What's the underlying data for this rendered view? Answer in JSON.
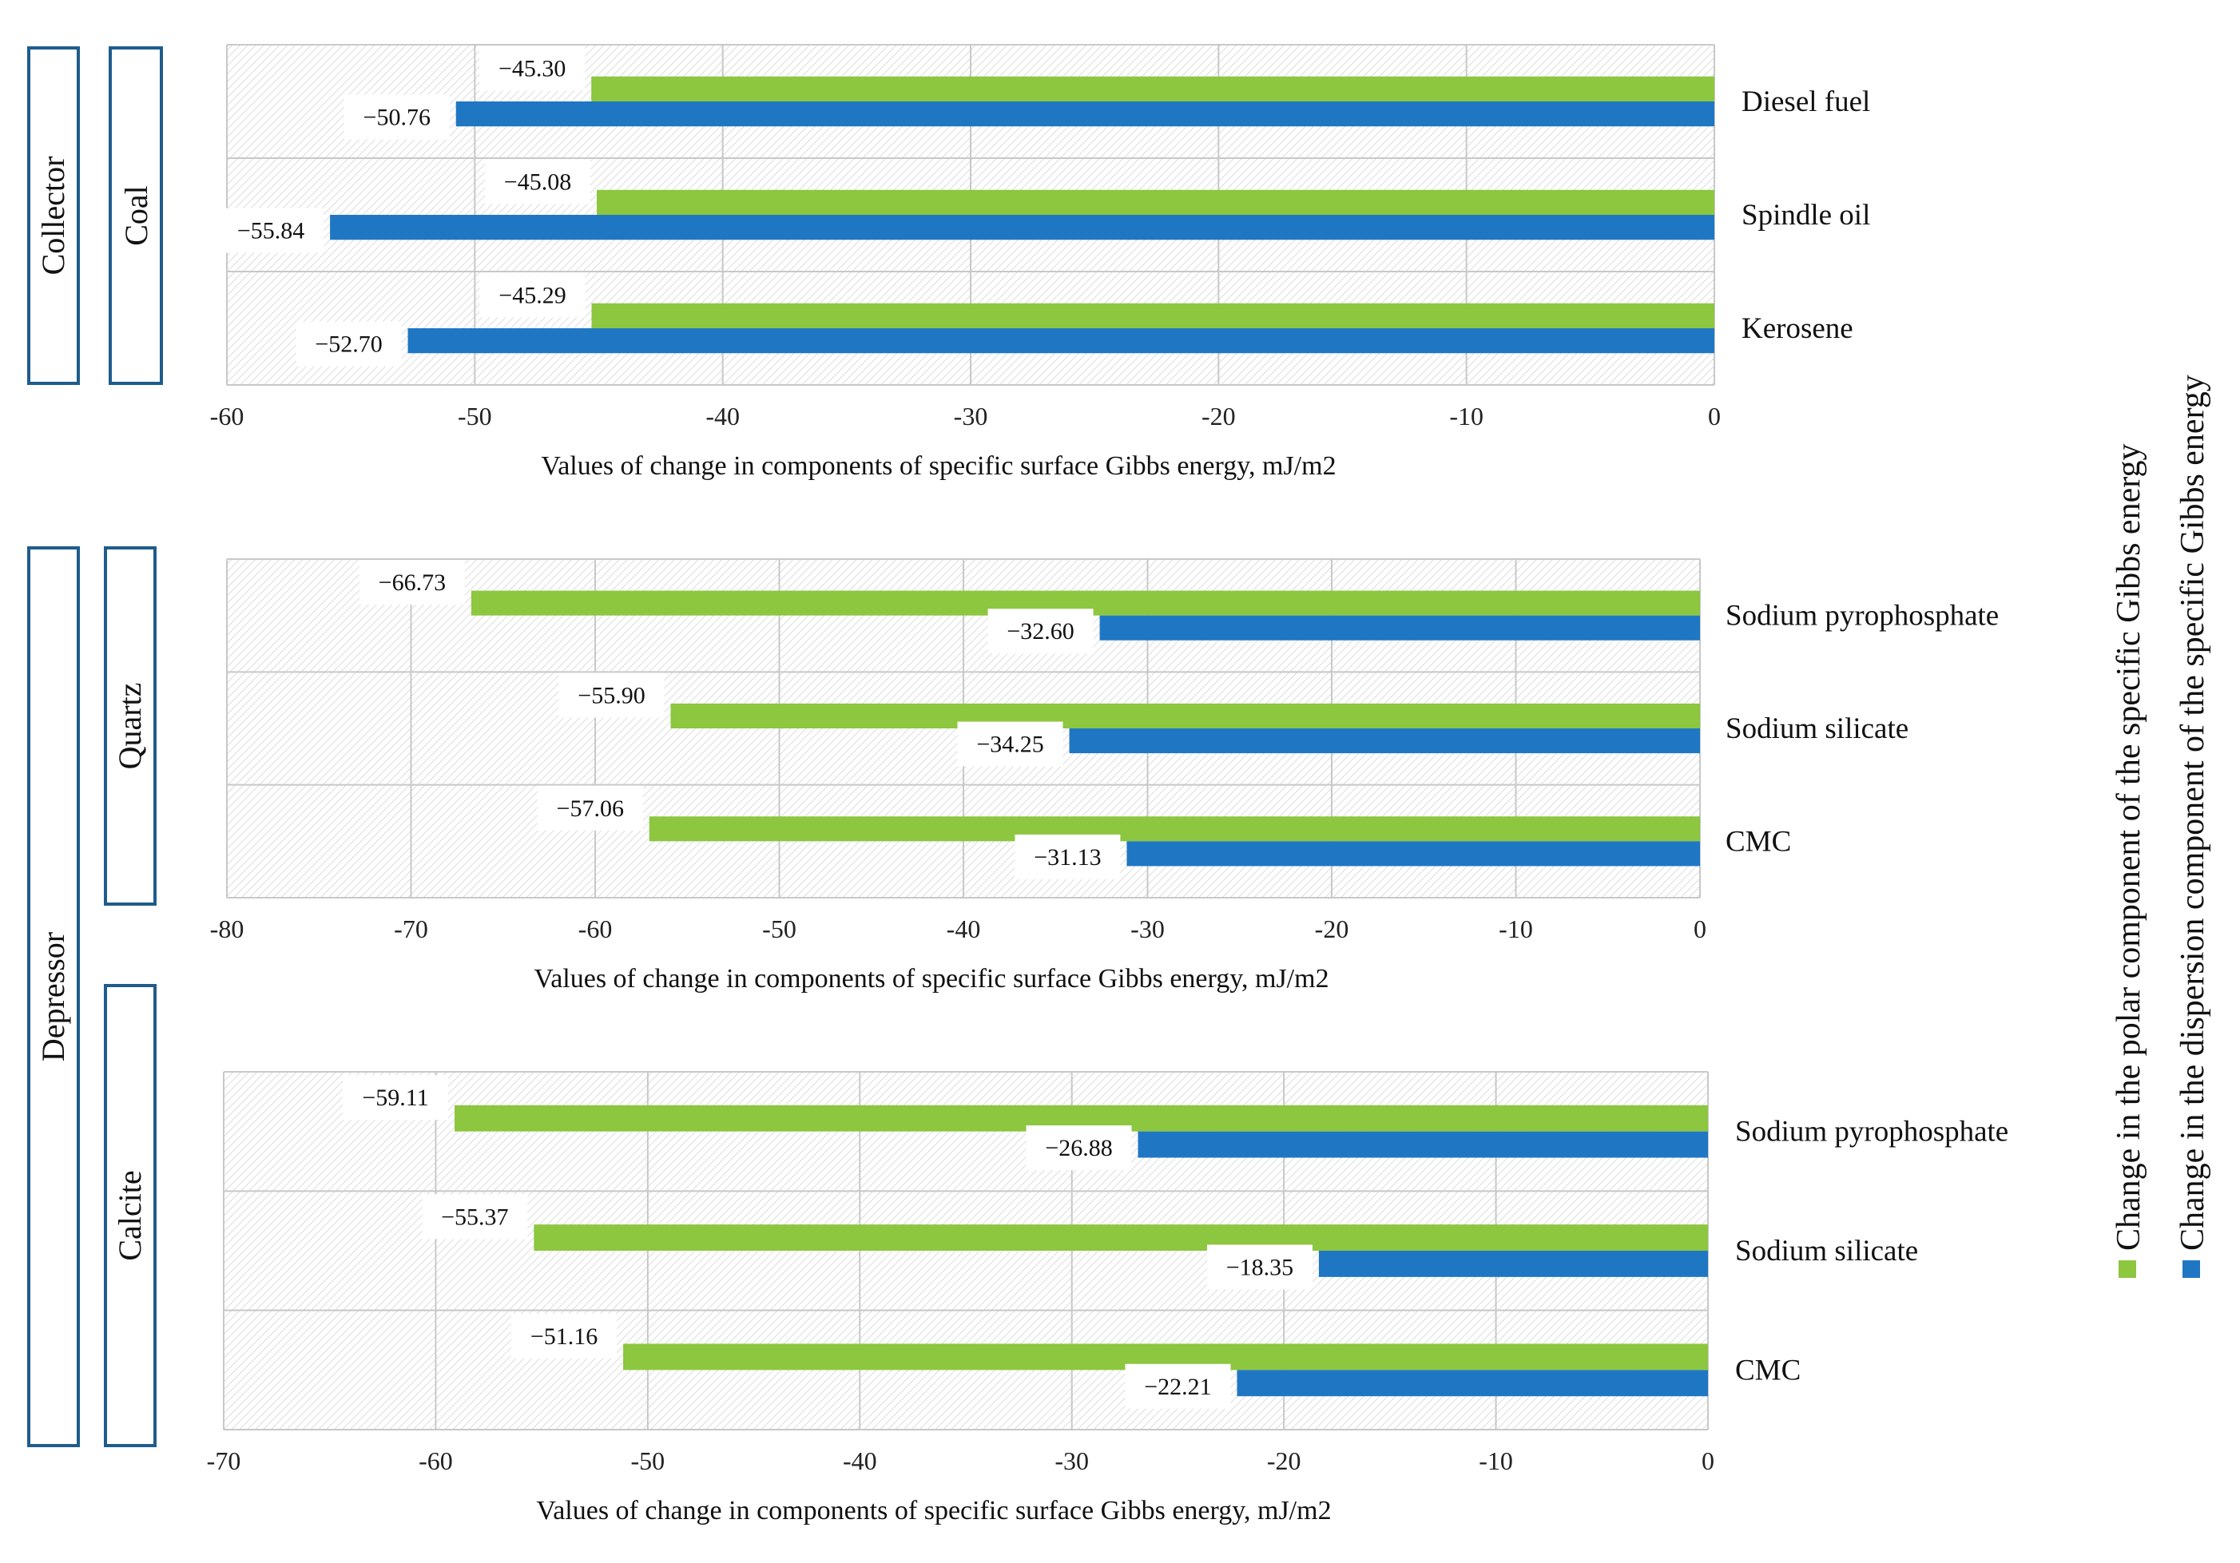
{
  "colors": {
    "polar": "#8DC63F",
    "dispersion": "#1F77C4",
    "frame": "#1F5C8C",
    "grid": "#c8c8c8"
  },
  "groups": [
    {
      "name": "group-collector",
      "label": "Collector"
    },
    {
      "name": "group-depressor",
      "label": "Depressor"
    }
  ],
  "subgroups": [
    {
      "name": "subgroup-coal",
      "label": "Coal"
    },
    {
      "name": "subgroup-quartz",
      "label": "Quartz"
    },
    {
      "name": "subgroup-calcite",
      "label": "Calcite"
    }
  ],
  "legend": {
    "polar": "Change in the polar component of the specific Gibbs energy",
    "dispersion": "Change in the dispersion component of the specific Gibbs energy"
  },
  "chart_data": [
    {
      "type": "bar",
      "orientation": "horizontal",
      "panel": "Coal",
      "categories": [
        "Diesel fuel",
        "Spindle oil",
        "Kerosene"
      ],
      "series": [
        {
          "name": "Change in the polar component of the specific Gibbs energy",
          "values": [
            -45.3,
            -45.08,
            -45.29
          ],
          "labels": [
            "−45.30",
            "−45.08",
            "−45.29"
          ]
        },
        {
          "name": "Change in the dispersion component of the specific Gibbs energy",
          "values": [
            -50.76,
            -55.84,
            -52.7
          ],
          "labels": [
            "−50.76",
            "−55.84",
            "−52.70"
          ]
        }
      ],
      "xlim": [
        -60,
        0
      ],
      "ticks": [
        -60,
        -50,
        -40,
        -30,
        -20,
        -10,
        0
      ],
      "xlabel": "Values of change in components of specific surface Gibbs energy, mJ/m2"
    },
    {
      "type": "bar",
      "orientation": "horizontal",
      "panel": "Quartz",
      "categories": [
        "Sodium pyrophosphate",
        "Sodium silicate",
        "CMC"
      ],
      "series": [
        {
          "name": "Change in the polar component of the specific Gibbs energy",
          "values": [
            -66.73,
            -55.9,
            -57.06
          ],
          "labels": [
            "−66.73",
            "−55.90",
            "−57.06"
          ]
        },
        {
          "name": "Change in the dispersion component of the specific Gibbs energy",
          "values": [
            -32.6,
            -34.25,
            -31.13
          ],
          "labels": [
            "−32.60",
            "−34.25",
            "−31.13"
          ]
        }
      ],
      "xlim": [
        -80,
        0
      ],
      "ticks": [
        -80,
        -70,
        -60,
        -50,
        -40,
        -30,
        -20,
        -10,
        0
      ],
      "xlabel": "Values of change in components of specific surface Gibbs energy, mJ/m2"
    },
    {
      "type": "bar",
      "orientation": "horizontal",
      "panel": "Calcite",
      "categories": [
        "Sodium pyrophosphate",
        "Sodium silicate",
        "CMC"
      ],
      "series": [
        {
          "name": "Change in the polar component of the specific Gibbs energy",
          "values": [
            -59.11,
            -55.37,
            -51.16
          ],
          "labels": [
            "−59.11",
            "−55.37",
            "−51.16"
          ]
        },
        {
          "name": "Change in the dispersion component of the specific Gibbs energy",
          "values": [
            -26.88,
            -18.35,
            -22.21
          ],
          "labels": [
            "−26.88",
            "−18.35",
            "−22.21"
          ]
        }
      ],
      "xlim": [
        -70,
        0
      ],
      "ticks": [
        -70,
        -60,
        -50,
        -40,
        -30,
        -20,
        -10,
        0
      ],
      "xlabel": "Values of change in components of specific surface Gibbs energy, mJ/m2"
    }
  ]
}
